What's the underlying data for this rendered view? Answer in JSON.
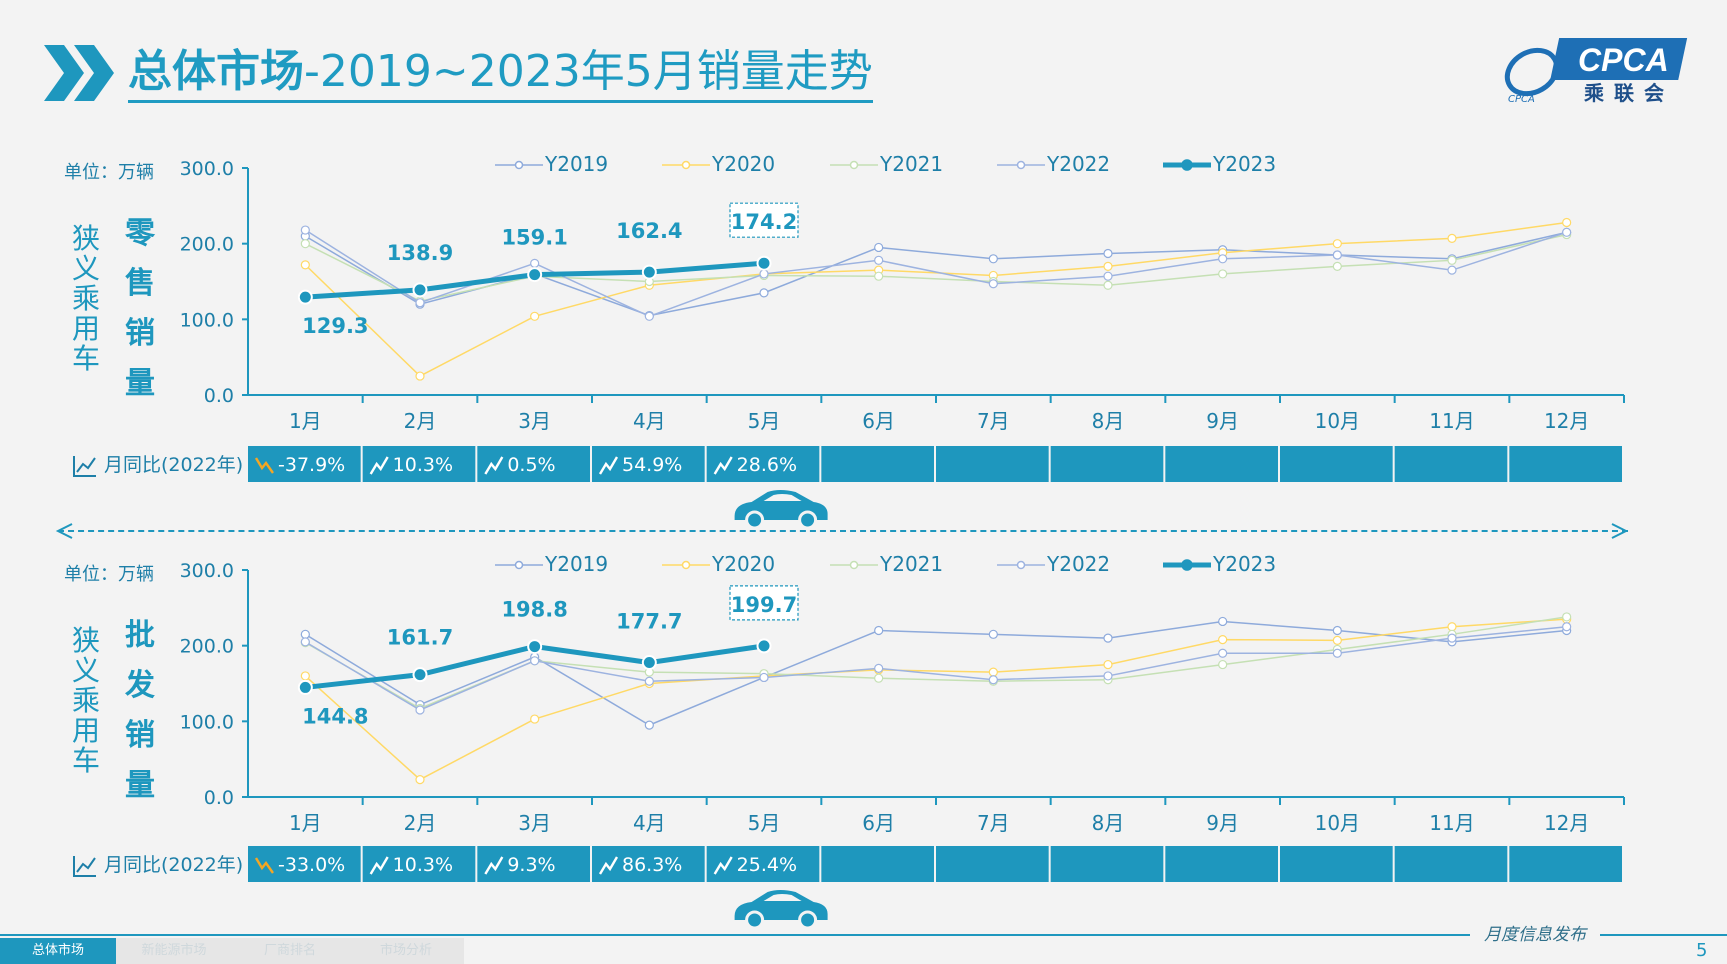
{
  "title": {
    "main": "总体市场",
    "rest": "-2019~2023年5月销量走势"
  },
  "logo": {
    "brand": "CPCA",
    "cn": "乘联会",
    "sub": "CPCA"
  },
  "months": [
    "1月",
    "2月",
    "3月",
    "4月",
    "5月",
    "6月",
    "7月",
    "8月",
    "9月",
    "10月",
    "11月",
    "12月"
  ],
  "legend": [
    "Y2019",
    "Y2020",
    "Y2021",
    "Y2022",
    "Y2023"
  ],
  "colors": {
    "Y2019": "#8eaadb",
    "Y2020": "#ffd966",
    "Y2021": "#c5e0b4",
    "Y2022": "#9db3e0",
    "Y2023": "#1e97be",
    "bar": "#1e97be",
    "axis": "#1e97be",
    "label": "#1e97be"
  },
  "unit_label": "单位：万辆",
  "yoy_label": "月同比(2022年)",
  "chart_data": [
    {
      "type": "line",
      "side_label_1": "狭义乘用车",
      "side_label_2": "零售销量",
      "ylim": [
        0,
        300
      ],
      "yticks": [
        "0.0",
        "100.0",
        "200.0",
        "300.0"
      ],
      "series": [
        {
          "name": "Y2019",
          "values": [
            210,
            120,
            160,
            105,
            135,
            195,
            180,
            187,
            192,
            185,
            180,
            215
          ]
        },
        {
          "name": "Y2020",
          "values": [
            172,
            25,
            104,
            145,
            160,
            165,
            158,
            170,
            188,
            200,
            207,
            228
          ]
        },
        {
          "name": "Y2021",
          "values": [
            200,
            124,
            157,
            150,
            158,
            157,
            150,
            145,
            160,
            170,
            178,
            212
          ]
        },
        {
          "name": "Y2022",
          "values": [
            218,
            122,
            174,
            104,
            160,
            178,
            147,
            157,
            180,
            185,
            165,
            215
          ]
        },
        {
          "name": "Y2023",
          "values": [
            129.3,
            138.9,
            159.1,
            162.4,
            174.2
          ]
        }
      ],
      "point_labels": [
        "129.3",
        "138.9",
        "159.1",
        "162.4",
        "174.2"
      ],
      "yoy": [
        "-37.9%",
        "10.3%",
        "0.5%",
        "54.9%",
        "28.6%"
      ],
      "yoy_dir": [
        "down",
        "up",
        "up",
        "up",
        "up"
      ]
    },
    {
      "type": "line",
      "side_label_1": "狭义乘用车",
      "side_label_2": "批发销量",
      "ylim": [
        0,
        300
      ],
      "yticks": [
        "0.0",
        "100.0",
        "200.0",
        "300.0"
      ],
      "series": [
        {
          "name": "Y2019",
          "values": [
            215,
            122,
            185,
            95,
            158,
            220,
            215,
            210,
            232,
            220,
            205,
            220
          ]
        },
        {
          "name": "Y2020",
          "values": [
            160,
            23,
            103,
            150,
            160,
            168,
            165,
            175,
            208,
            207,
            225,
            235
          ]
        },
        {
          "name": "Y2021",
          "values": [
            204,
            117,
            180,
            165,
            163,
            157,
            153,
            155,
            175,
            195,
            215,
            238
          ]
        },
        {
          "name": "Y2022",
          "values": [
            205,
            115,
            180,
            153,
            158,
            170,
            155,
            160,
            190,
            190,
            210,
            225
          ]
        },
        {
          "name": "Y2023",
          "values": [
            144.8,
            161.7,
            198.8,
            177.7,
            199.7
          ]
        }
      ],
      "point_labels": [
        "144.8",
        "161.7",
        "198.8",
        "177.7",
        "199.7"
      ],
      "yoy": [
        "-33.0%",
        "10.3%",
        "9.3%",
        "86.3%",
        "25.4%"
      ],
      "yoy_dir": [
        "down",
        "up",
        "up",
        "up",
        "up"
      ]
    }
  ],
  "tabs": [
    "总体市场",
    "新能源市场",
    "厂商排名",
    "市场分析"
  ],
  "footer": {
    "release": "月度信息发布",
    "page": "5"
  }
}
